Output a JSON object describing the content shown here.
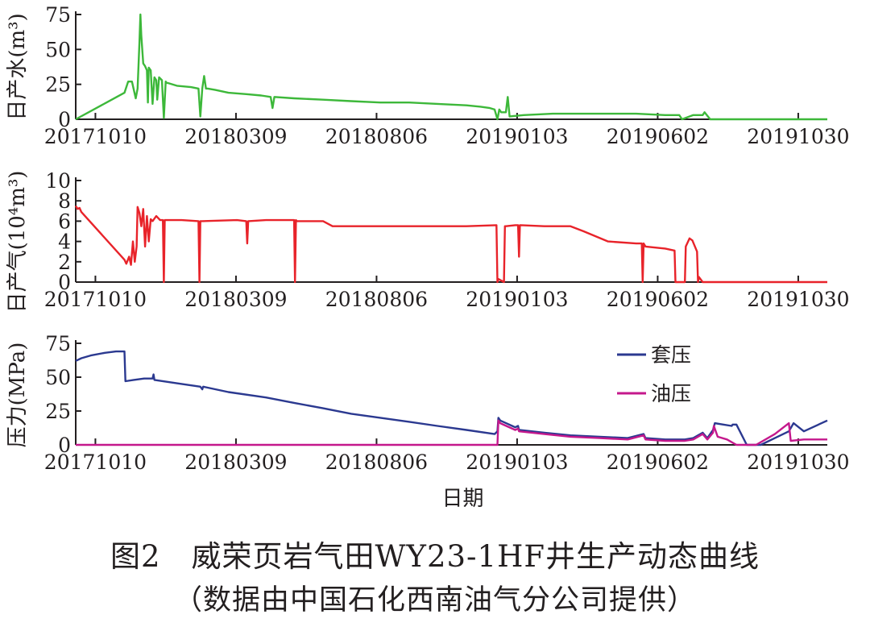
{
  "figure": {
    "caption_line1": "图2　威荣页岩气田WY23-1HF井生产动态曲线",
    "caption_line2": "（数据由中国石化西南油气分公司提供）"
  },
  "chart_data": [
    {
      "type": "line",
      "ylabel": "日产水(m³)",
      "ylim": [
        0,
        75
      ],
      "yticks": [
        0,
        25,
        50,
        75
      ],
      "x_range": [
        "2017-09-19",
        "2019-11-30"
      ],
      "xtick_labels": [
        "20171010",
        "20180309",
        "20180806",
        "20190103",
        "20190602",
        "20191030"
      ],
      "grid": false,
      "series": [
        {
          "color": "#3db83a",
          "x": [
            "2017-09-19",
            "2017-11-10",
            "2017-11-14",
            "2017-11-18",
            "2017-11-22",
            "2017-11-24",
            "2017-11-26",
            "2017-11-27",
            "2017-11-28",
            "2017-11-30",
            "2017-12-02",
            "2017-12-04",
            "2017-12-05",
            "2017-12-06",
            "2017-12-08",
            "2017-12-10",
            "2017-12-12",
            "2017-12-14",
            "2017-12-15",
            "2017-12-17",
            "2017-12-20",
            "2017-12-22",
            "2017-12-24",
            "2017-12-25",
            "2017-12-26",
            "2018-01-05",
            "2018-01-20",
            "2018-01-28",
            "2018-01-30",
            "2018-02-01",
            "2018-02-03",
            "2018-02-05",
            "2018-02-07",
            "2018-02-15",
            "2018-03-01",
            "2018-03-20",
            "2018-04-05",
            "2018-04-15",
            "2018-04-17",
            "2018-04-19",
            "2018-05-10",
            "2018-06-10",
            "2018-07-10",
            "2018-08-10",
            "2018-09-10",
            "2018-10-10",
            "2018-11-10",
            "2018-11-25",
            "2018-12-05",
            "2018-12-10",
            "2018-12-13",
            "2018-12-15",
            "2018-12-17",
            "2018-12-22",
            "2018-12-24",
            "2018-12-26",
            "2019-01-10",
            "2019-02-10",
            "2019-03-10",
            "2019-04-10",
            "2019-05-10",
            "2019-06-10",
            "2019-06-25",
            "2019-06-28",
            "2019-07-10",
            "2019-07-20",
            "2019-07-22",
            "2019-07-28",
            "2019-11-30"
          ],
          "y": [
            0,
            19,
            27,
            27,
            15,
            22,
            55,
            75,
            60,
            40,
            38,
            35,
            12,
            37,
            35,
            11,
            30,
            28,
            14,
            30,
            28,
            1,
            27,
            26,
            26,
            24,
            23,
            22,
            2,
            22,
            31,
            22,
            22,
            21,
            19,
            18,
            17,
            16,
            8,
            16,
            15,
            14,
            13,
            12,
            12,
            11,
            10,
            9,
            8,
            7,
            0,
            7,
            5,
            5,
            16,
            2,
            3,
            4,
            4,
            4,
            4,
            3,
            3,
            0,
            3,
            3,
            5,
            0,
            0
          ]
        }
      ]
    },
    {
      "type": "line",
      "ylabel": "日产气(10⁴m³)",
      "ylim": [
        0,
        10
      ],
      "yticks": [
        0,
        2,
        4,
        6,
        8,
        10
      ],
      "x_range": [
        "2017-09-19",
        "2019-11-30"
      ],
      "xtick_labels": [
        "20171010",
        "20180309",
        "20180806",
        "20190103",
        "20190602",
        "20191030"
      ],
      "grid": false,
      "series": [
        {
          "color": "#e8232a",
          "x": [
            "2017-09-19",
            "2017-09-21",
            "2017-09-23",
            "2017-09-25",
            "2017-11-10",
            "2017-11-12",
            "2017-11-15",
            "2017-11-17",
            "2017-11-19",
            "2017-11-21",
            "2017-11-23",
            "2017-11-24",
            "2017-11-26",
            "2017-11-28",
            "2017-11-30",
            "2017-12-02",
            "2017-12-04",
            "2017-12-06",
            "2017-12-08",
            "2017-12-10",
            "2017-12-14",
            "2017-12-18",
            "2017-12-21",
            "2017-12-22",
            "2017-12-23",
            "2017-12-24",
            "2018-01-10",
            "2018-01-28",
            "2018-01-29",
            "2018-01-30",
            "2018-02-01",
            "2018-03-10",
            "2018-03-20",
            "2018-03-21",
            "2018-03-22",
            "2018-04-10",
            "2018-05-10",
            "2018-05-11",
            "2018-05-12",
            "2018-05-13",
            "2018-06-10",
            "2018-06-20",
            "2018-07-10",
            "2018-08-10",
            "2018-09-10",
            "2018-10-10",
            "2018-11-10",
            "2018-12-12",
            "2018-12-13",
            "2018-12-14",
            "2018-12-20",
            "2018-12-21",
            "2018-12-22",
            "2019-01-01",
            "2019-01-04",
            "2019-01-05",
            "2019-01-06",
            "2019-01-07",
            "2019-02-01",
            "2019-03-01",
            "2019-03-15",
            "2019-04-10",
            "2019-05-10",
            "2019-05-16",
            "2019-05-17",
            "2019-05-18",
            "2019-05-20",
            "2019-06-10",
            "2019-06-20",
            "2019-06-21",
            "2019-06-22",
            "2019-07-01",
            "2019-07-02",
            "2019-07-06",
            "2019-07-09",
            "2019-07-14",
            "2019-07-15",
            "2019-07-16",
            "2019-07-20",
            "2019-11-30"
          ],
          "y": [
            7.5,
            7.2,
            7.3,
            6.9,
            2.2,
            1.8,
            2.5,
            1.7,
            4.0,
            2.0,
            3.5,
            7.4,
            6.8,
            5.5,
            7.2,
            3.5,
            6.5,
            4.0,
            6.2,
            6.0,
            6.5,
            6.1,
            6.1,
            0,
            6.1,
            6.1,
            6.1,
            6.0,
            0,
            6.0,
            6.0,
            6.1,
            6.0,
            3.8,
            6.0,
            6.1,
            6.1,
            0,
            6.1,
            6.0,
            6.0,
            5.5,
            5.5,
            5.5,
            5.5,
            5.5,
            5.5,
            5.6,
            0,
            0.3,
            0,
            5.5,
            5.5,
            5.6,
            5.6,
            2.5,
            5.6,
            5.6,
            5.5,
            5.5,
            5.0,
            4.0,
            3.8,
            3.8,
            0,
            3.8,
            3.5,
            3.3,
            3.1,
            0,
            0,
            0,
            3.5,
            4.3,
            4.1,
            3.0,
            0,
            0.5,
            0,
            0
          ]
        }
      ]
    },
    {
      "type": "line",
      "ylabel": "压力(MPa)",
      "xlabel": "日期",
      "ylim": [
        0,
        75
      ],
      "yticks": [
        0,
        25,
        50,
        75
      ],
      "x_range": [
        "2017-09-19",
        "2019-11-30"
      ],
      "xtick_labels": [
        "20171010",
        "20180309",
        "20180806",
        "20190103",
        "20190602",
        "20191030"
      ],
      "grid": false,
      "legend": "top-right",
      "series": [
        {
          "name": "套压",
          "color": "#2b3990",
          "x": [
            "2017-09-19",
            "2017-09-25",
            "2017-10-05",
            "2017-10-20",
            "2017-11-01",
            "2017-11-10",
            "2017-11-11",
            "2017-11-20",
            "2017-12-01",
            "2017-12-10",
            "2017-12-11",
            "2017-12-12",
            "2018-01-10",
            "2018-01-30",
            "2018-02-01",
            "2018-02-02",
            "2018-03-01",
            "2018-04-10",
            "2018-05-10",
            "2018-06-10",
            "2018-07-10",
            "2018-08-10",
            "2018-09-10",
            "2018-10-10",
            "2018-11-10",
            "2018-12-10",
            "2018-12-13",
            "2018-12-14",
            "2018-12-16",
            "2019-01-01",
            "2019-01-04",
            "2019-01-05",
            "2019-02-01",
            "2019-03-01",
            "2019-04-01",
            "2019-05-01",
            "2019-05-18",
            "2019-05-20",
            "2019-06-10",
            "2019-06-25",
            "2019-07-01",
            "2019-07-10",
            "2019-07-20",
            "2019-07-25",
            "2019-07-31",
            "2019-08-02",
            "2019-08-20",
            "2019-08-21",
            "2019-08-25",
            "2019-09-05",
            "2019-09-20",
            "2019-10-05",
            "2019-10-20",
            "2019-10-25",
            "2019-11-05",
            "2019-11-30"
          ],
          "y": [
            62,
            64,
            66,
            68,
            69,
            69,
            47,
            48,
            49,
            49,
            52,
            48,
            45,
            43,
            41,
            43,
            39,
            35,
            31,
            27,
            23,
            20,
            17,
            14,
            11,
            8,
            10,
            20,
            18,
            13,
            14,
            11,
            9,
            7,
            6,
            5,
            8,
            5,
            4,
            4,
            4,
            5,
            9,
            5,
            11,
            16,
            14,
            15,
            15,
            0,
            0,
            5,
            10,
            16,
            10,
            18
          ]
        },
        {
          "name": "油压",
          "color": "#c4188c",
          "x": [
            "2017-09-19",
            "2018-12-12",
            "2018-12-13",
            "2018-12-14",
            "2018-12-16",
            "2019-01-01",
            "2019-01-04",
            "2019-01-05",
            "2019-02-01",
            "2019-03-01",
            "2019-04-01",
            "2019-05-01",
            "2019-05-18",
            "2019-05-20",
            "2019-06-10",
            "2019-06-25",
            "2019-07-01",
            "2019-07-10",
            "2019-07-20",
            "2019-07-25",
            "2019-07-31",
            "2019-08-01",
            "2019-08-05",
            "2019-08-15",
            "2019-08-25",
            "2019-09-05",
            "2019-09-15",
            "2019-10-05",
            "2019-10-20",
            "2019-10-22",
            "2019-11-05",
            "2019-11-30"
          ],
          "y": [
            0,
            0,
            0,
            18,
            16,
            11,
            12,
            10,
            8,
            6,
            5,
            4,
            7,
            4,
            3,
            3,
            3,
            4,
            8,
            4,
            9,
            14,
            6,
            4,
            0,
            0,
            0,
            8,
            16,
            3,
            4,
            4
          ]
        }
      ]
    }
  ]
}
